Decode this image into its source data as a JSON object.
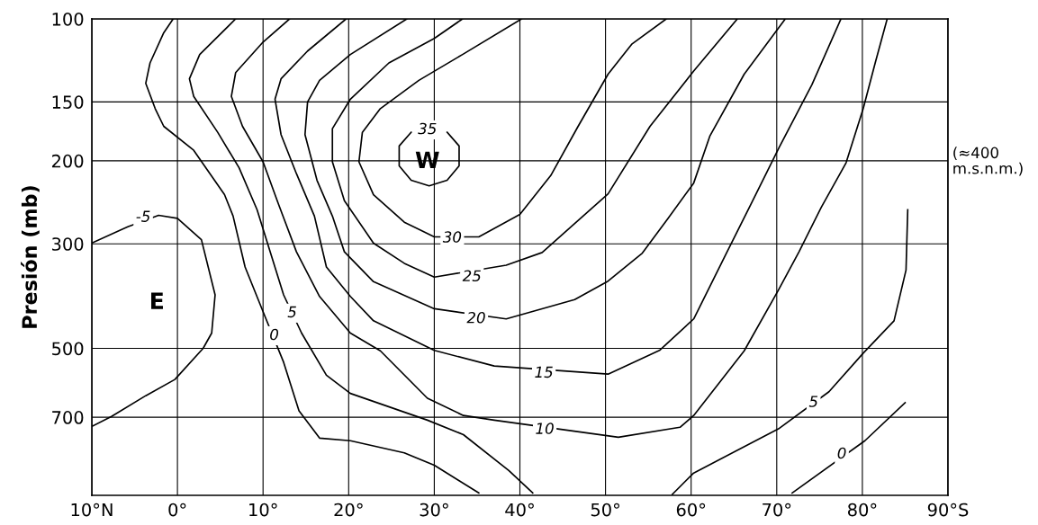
{
  "chart_data": {
    "type": "line",
    "ylabel": "Presión (mb)",
    "log": true,
    "grid": true,
    "xlim": [
      -10,
      90
    ],
    "ylim": [
      1025,
      100
    ],
    "xticks": [
      {
        "value": -10,
        "label": "10°N"
      },
      {
        "value": 0,
        "label": "0°"
      },
      {
        "value": 10,
        "label": "10°"
      },
      {
        "value": 20,
        "label": "20°"
      },
      {
        "value": 30,
        "label": "30°"
      },
      {
        "value": 40,
        "label": "40°"
      },
      {
        "value": 50,
        "label": "50°"
      },
      {
        "value": 60,
        "label": "60°"
      },
      {
        "value": 70,
        "label": "70°"
      },
      {
        "value": 80,
        "label": "80°"
      },
      {
        "value": 90,
        "label": "90°S"
      }
    ],
    "yticks": [
      100,
      150,
      200,
      300,
      500,
      700
    ],
    "series": [
      {
        "color": "#000000",
        "x": [
          -10,
          -5.8,
          -2.2,
          0,
          2.8,
          4.4,
          4.0,
          3.0,
          -0.3,
          -3.7,
          -7.7,
          -10
        ],
        "values": [
          299,
          276,
          261,
          265,
          294,
          385,
          464,
          500,
          582,
          630,
          697,
          732
        ]
      },
      {
        "color": "#000000",
        "x": [
          -0.5,
          -1.6,
          -3.2,
          -3.7,
          -2.6,
          -1.6,
          1.9,
          5.5,
          6.5,
          7.9,
          10.3,
          12.4,
          14.2,
          16.6,
          20.2,
          26.5,
          30.0,
          35.2
        ],
        "values": [
          100,
          107,
          124,
          137,
          155,
          169,
          190,
          236,
          262,
          336,
          431,
          535,
          678,
          775,
          785,
          833,
          885,
          1013
        ]
      },
      {
        "color": "#000000",
        "x": [
          6.8,
          2.6,
          1.4,
          1.9,
          4.7,
          7.2,
          9.3,
          12.4,
          14.5,
          17.4,
          20.2,
          29.2,
          33.4,
          38.7,
          41.5
        ],
        "values": [
          100,
          119,
          134,
          146,
          174,
          207,
          254,
          385,
          464,
          570,
          623,
          710,
          762,
          908,
          1013
        ]
      },
      {
        "color": "#000000",
        "x": [
          13.1,
          10.0,
          6.8,
          6.3,
          7.6,
          10.0,
          11.8,
          13.9,
          16.6,
          20.2,
          23.7,
          29.2,
          33.4,
          37.0,
          51.5,
          58.7,
          60.3,
          66.2,
          70.2,
          72.6,
          75.2,
          78.1,
          80.1,
          81.5,
          82.9
        ],
        "values": [
          100,
          112,
          130,
          146,
          169,
          201,
          247,
          312,
          388,
          464,
          506,
          638,
          694,
          710,
          772,
          735,
          694,
          506,
          376,
          312,
          251,
          202,
          155,
          124,
          100
        ]
      },
      {
        "color": "#000000",
        "x": [
          19.7,
          15.2,
          12.1,
          11.4,
          12.1,
          13.9,
          16.0,
          17.4,
          20.2,
          22.9,
          30.0,
          37.0,
          50.3,
          56.3,
          60.3,
          64.2,
          67.0,
          70.3,
          74.1,
          77.5
        ],
        "values": [
          100,
          117,
          134,
          148,
          176,
          213,
          262,
          336,
          388,
          437,
          505,
          545,
          567,
          505,
          433,
          312,
          247,
          187,
          138,
          100
        ]
      },
      {
        "color": "#000000",
        "x": [
          26.8,
          20.2,
          16.6,
          15.2,
          14.9,
          16.3,
          18.1,
          19.5,
          22.9,
          30.0,
          38.4,
          46.4,
          50.3,
          54.3,
          57.3,
          60.3,
          62.2,
          66.2,
          71.0
        ],
        "values": [
          100,
          119,
          135,
          150,
          176,
          220,
          262,
          312,
          361,
          412,
          433,
          394,
          360,
          314,
          265,
          223,
          177,
          131,
          100
        ]
      },
      {
        "color": "#000000",
        "x": [
          33.3,
          30.0,
          24.7,
          20.2,
          18.1,
          18.1,
          19.5,
          22.9,
          26.5,
          30.0,
          38.4,
          42.6,
          50.3,
          55.2,
          60.3,
          65.4
        ],
        "values": [
          100,
          110,
          124,
          148,
          171,
          201,
          243,
          299,
          330,
          353,
          333,
          313,
          235,
          169,
          129,
          100
        ]
      },
      {
        "color": "#000000",
        "x": [
          40.2,
          33.3,
          28.2,
          23.7,
          21.6,
          21.2,
          22.9,
          26.5,
          30.0,
          35.2,
          40.0,
          43.6,
          46.8,
          50.3,
          53.1,
          57.1
        ],
        "values": [
          100,
          119,
          135,
          155,
          174,
          201,
          236,
          270,
          290,
          290,
          260,
          215,
          169,
          131,
          113,
          100
        ]
      },
      {
        "color": "#000000",
        "x": [
          85.3,
          85.1,
          83.7,
          80.1,
          76.1,
          70.2,
          60.3,
          57.8
        ],
        "values": [
          254,
          341,
          437,
          512,
          618,
          741,
          919,
          1020
        ]
      },
      {
        "color": "#000000",
        "x": [
          85.0,
          80.3,
          71.8
        ],
        "values": [
          652,
          785,
          1013
        ]
      },
      {
        "color": "#000000",
        "x": [
          31.5,
          32.9,
          32.9,
          31.5,
          29.4,
          27.3,
          25.9,
          25.9,
          27.3
        ],
        "values": [
          174,
          186,
          205,
          220,
          226,
          220,
          205,
          186,
          174
        ]
      }
    ],
    "annotations": [
      {
        "text": "-5",
        "x": -4,
        "y": 264
      },
      {
        "text": "0",
        "x": 11.3,
        "y": 470
      },
      {
        "text": "5",
        "x": 13.4,
        "y": 421
      },
      {
        "text": "35",
        "x": 29.2,
        "y": 172
      },
      {
        "text": "30",
        "x": 32.1,
        "y": 292
      },
      {
        "text": "25",
        "x": 34.4,
        "y": 353
      },
      {
        "text": "20",
        "x": 34.9,
        "y": 433
      },
      {
        "text": "15",
        "x": 42.8,
        "y": 565
      },
      {
        "text": "10",
        "x": 42.9,
        "y": 744
      },
      {
        "text": "5",
        "x": 74.3,
        "y": 652
      },
      {
        "text": "0",
        "x": 77.6,
        "y": 839
      },
      "W",
      "E",
      "(≈400\nm.s.n.m.)"
    ]
  }
}
